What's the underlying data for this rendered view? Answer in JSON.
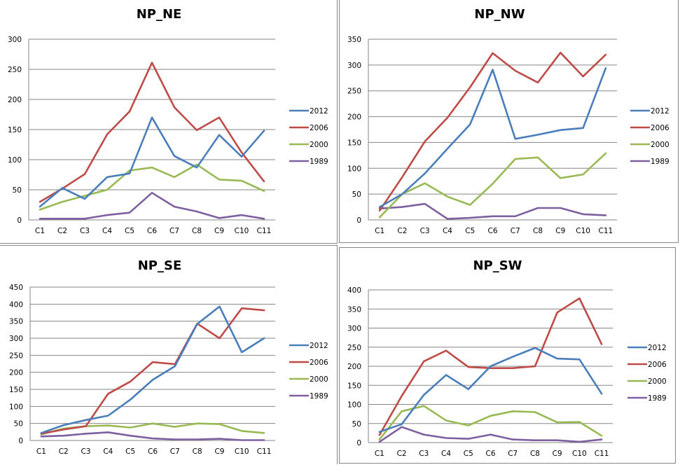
{
  "chart_data": [
    {
      "type": "line",
      "title": "NP_NE",
      "categories": [
        "C1",
        "C2",
        "C3",
        "C4",
        "C5",
        "C6",
        "C7",
        "C8",
        "C9",
        "C10",
        "C11"
      ],
      "ylim": [
        0,
        300
      ],
      "yticks": [
        "0",
        "50",
        "100",
        "150",
        "200",
        "250",
        "300"
      ],
      "ytick_values": [
        0,
        50,
        100,
        150,
        200,
        250,
        300
      ],
      "grid": true,
      "legend": "right",
      "series": [
        {
          "name": "2012",
          "color": "#4a7ebb",
          "values": [
            22,
            53,
            35,
            71,
            77,
            170,
            106,
            87,
            141,
            105,
            148
          ]
        },
        {
          "name": "2006",
          "color": "#be4b48",
          "values": [
            30,
            52,
            76,
            142,
            180,
            261,
            187,
            149,
            170,
            112,
            64
          ]
        },
        {
          "name": "2000",
          "color": "#98b954",
          "values": [
            17,
            30,
            40,
            50,
            82,
            87,
            71,
            92,
            67,
            65,
            48
          ]
        },
        {
          "name": "1989",
          "color": "#7d60a0",
          "values": [
            2,
            2,
            2,
            8,
            12,
            45,
            22,
            14,
            3,
            8,
            2
          ]
        }
      ]
    },
    {
      "type": "line",
      "title": "NP_NW",
      "categories": [
        "C1",
        "C2",
        "C3",
        "C4",
        "C5",
        "C6",
        "C7",
        "C8",
        "C9",
        "C10",
        "C11"
      ],
      "ylim": [
        0,
        350
      ],
      "yticks": [
        "0",
        "50",
        "100",
        "150",
        "200",
        "250",
        "300",
        "350"
      ],
      "ytick_values": [
        0,
        50,
        100,
        150,
        200,
        250,
        300,
        350
      ],
      "grid": true,
      "legend": "right",
      "series": [
        {
          "name": "2012",
          "color": "#4a7ebb",
          "values": [
            25,
            50,
            90,
            138,
            185,
            291,
            157,
            165,
            174,
            178,
            294
          ]
        },
        {
          "name": "2006",
          "color": "#be4b48",
          "values": [
            18,
            83,
            152,
            198,
            257,
            323,
            289,
            266,
            324,
            278,
            320
          ]
        },
        {
          "name": "2000",
          "color": "#98b954",
          "values": [
            5,
            50,
            71,
            45,
            29,
            70,
            118,
            121,
            81,
            88,
            129
          ]
        },
        {
          "name": "1989",
          "color": "#7d60a0",
          "values": [
            22,
            25,
            31,
            2,
            4,
            7,
            7,
            23,
            23,
            11,
            9
          ]
        }
      ]
    },
    {
      "type": "line",
      "title": "NP_SE",
      "categories": [
        "C1",
        "C2",
        "C3",
        "C4",
        "C5",
        "C6",
        "C7",
        "C8",
        "C9",
        "C10",
        "C11"
      ],
      "ylim": [
        0,
        450
      ],
      "yticks": [
        "0",
        "50",
        "100",
        "150",
        "200",
        "250",
        "300",
        "350",
        "400",
        "450"
      ],
      "ytick_values": [
        0,
        50,
        100,
        150,
        200,
        250,
        300,
        350,
        400,
        450
      ],
      "grid": true,
      "legend": "right",
      "series": [
        {
          "name": "2012",
          "color": "#4a7ebb",
          "values": [
            22,
            45,
            60,
            73,
            120,
            178,
            218,
            342,
            393,
            259,
            300
          ]
        },
        {
          "name": "2006",
          "color": "#be4b48",
          "values": [
            20,
            32,
            42,
            137,
            173,
            230,
            224,
            343,
            300,
            388,
            382
          ]
        },
        {
          "name": "2000",
          "color": "#98b954",
          "values": [
            18,
            35,
            42,
            44,
            38,
            50,
            40,
            50,
            48,
            28,
            22
          ]
        },
        {
          "name": "1989",
          "color": "#7d60a0",
          "values": [
            12,
            14,
            20,
            24,
            14,
            6,
            3,
            3,
            5,
            1,
            1
          ]
        }
      ]
    },
    {
      "type": "line",
      "title": "NP_SW",
      "categories": [
        "C1",
        "C2",
        "C3",
        "C4",
        "C5",
        "C6",
        "C7",
        "C8",
        "C9",
        "C10",
        "C11"
      ],
      "ylim": [
        0,
        400
      ],
      "yticks": [
        "0",
        "50",
        "100",
        "150",
        "200",
        "250",
        "300",
        "350",
        "400"
      ],
      "ytick_values": [
        0,
        50,
        100,
        150,
        200,
        250,
        300,
        350,
        400
      ],
      "grid": true,
      "legend": "right",
      "series": [
        {
          "name": "2012",
          "color": "#4a7ebb",
          "values": [
            28,
            48,
            125,
            177,
            140,
            200,
            225,
            248,
            220,
            218,
            128
          ]
        },
        {
          "name": "2006",
          "color": "#be4b48",
          "values": [
            20,
            122,
            213,
            241,
            198,
            195,
            195,
            200,
            341,
            378,
            258
          ]
        },
        {
          "name": "2000",
          "color": "#98b954",
          "values": [
            8,
            82,
            96,
            58,
            45,
            70,
            82,
            80,
            53,
            54,
            18
          ]
        },
        {
          "name": "1989",
          "color": "#7d60a0",
          "values": [
            2,
            41,
            21,
            12,
            10,
            21,
            8,
            6,
            6,
            2,
            8
          ]
        }
      ]
    }
  ]
}
